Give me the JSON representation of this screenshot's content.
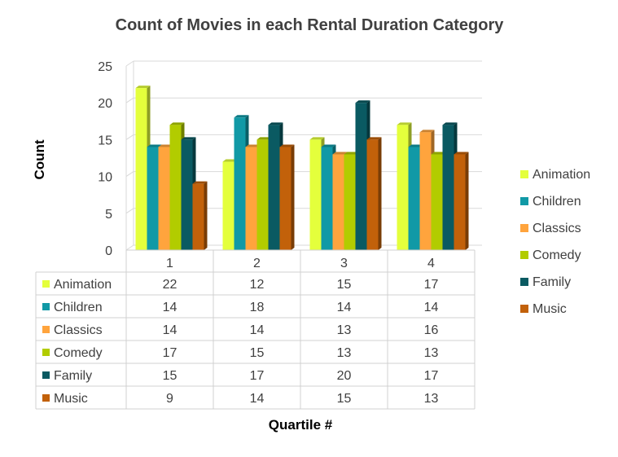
{
  "chart_data": {
    "type": "bar",
    "title": "Count of Movies in each Rental Duration Category",
    "xlabel": "Quartile #",
    "ylabel": "Count",
    "ylim": [
      0,
      25
    ],
    "yticks": [
      "0",
      "5",
      "10",
      "15",
      "20",
      "25"
    ],
    "categories": [
      "1",
      "2",
      "3",
      "4"
    ],
    "grid": true,
    "legend_position": "right",
    "data_table": true,
    "series": [
      {
        "name": "Animation",
        "values": [
          22,
          12,
          15,
          17
        ],
        "color": "#E4FF3C"
      },
      {
        "name": "Children",
        "values": [
          14,
          18,
          14,
          14
        ],
        "color": "#1199A6"
      },
      {
        "name": "Classics",
        "values": [
          14,
          14,
          13,
          16
        ],
        "color": "#FFA43D"
      },
      {
        "name": "Comedy",
        "values": [
          17,
          15,
          13,
          13
        ],
        "color": "#B2CC00"
      },
      {
        "name": "Family",
        "values": [
          15,
          17,
          20,
          17
        ],
        "color": "#0A5A62"
      },
      {
        "name": "Music",
        "values": [
          9,
          14,
          15,
          13
        ],
        "color": "#C2610A"
      }
    ]
  }
}
